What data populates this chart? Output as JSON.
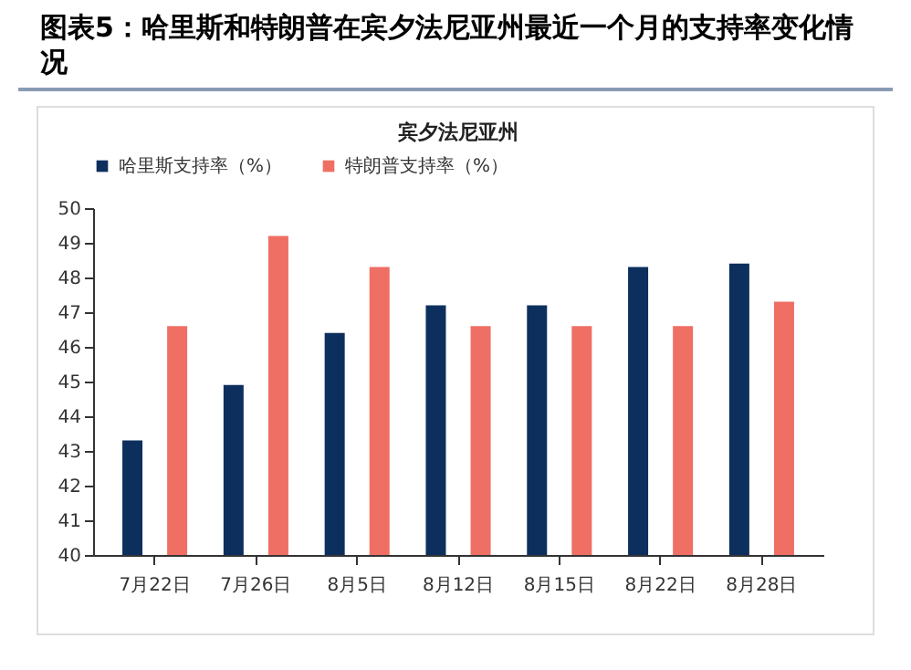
{
  "chart_data": {
    "type": "bar",
    "title": "图表5：哈里斯和特朗普在宾夕法尼亚州最近一个月的支持率变化情况",
    "subtitle": "宾夕法尼亚州",
    "categories": [
      "7月22日",
      "7月26日",
      "8月5日",
      "8月12日",
      "8月15日",
      "8月22日",
      "8月28日"
    ],
    "series": [
      {
        "name": "哈里斯支持率（%）",
        "color": "#0d2f5e",
        "values": [
          43.3,
          44.9,
          46.4,
          47.2,
          47.2,
          48.3,
          48.4
        ]
      },
      {
        "name": "特朗普支持率（%）",
        "color": "#ef6f64",
        "values": [
          46.6,
          49.2,
          48.3,
          46.6,
          46.6,
          46.6,
          47.3
        ]
      }
    ],
    "ylim": [
      40,
      50
    ],
    "yticks": [
      40,
      41,
      42,
      43,
      44,
      45,
      46,
      47,
      48,
      49,
      50
    ],
    "grid": false,
    "legend": "top"
  }
}
